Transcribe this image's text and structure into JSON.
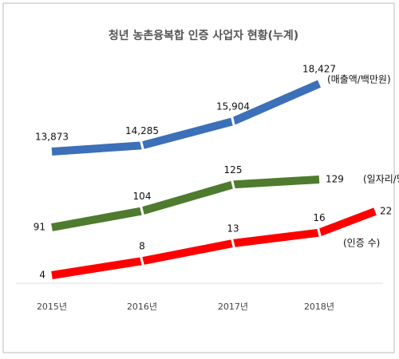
{
  "chart_data": {
    "type": "line",
    "title": "청년 농촌융복합 인증 사업자 현황(누계)",
    "categories": [
      "2015년",
      "2016년",
      "2017년",
      "2018년",
      null
    ],
    "series": [
      {
        "name": "(매출액/백만원)",
        "color": "#3c70b8",
        "values": [
          13873,
          14285,
          15904,
          18427,
          null
        ],
        "value_labels": [
          "13,873",
          "14,285",
          "15,904",
          "18,427",
          null
        ]
      },
      {
        "name": "(일자리/명)",
        "color": "#4f7b2f",
        "values": [
          91,
          104,
          125,
          129,
          null
        ]
      },
      {
        "name": "(인증 수)",
        "color": "#ff0000",
        "values": [
          4,
          8,
          13,
          16,
          22
        ]
      }
    ]
  }
}
